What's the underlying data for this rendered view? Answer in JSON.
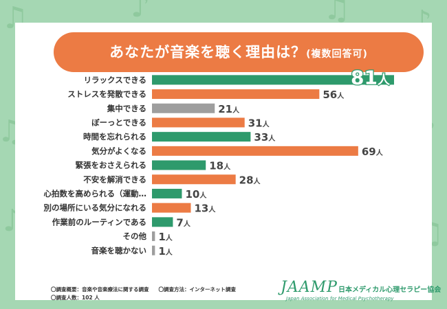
{
  "title": {
    "main": "あなたが音楽を聴く理由は？",
    "sub": "(複数回答可)"
  },
  "chart_data": {
    "type": "bar",
    "orientation": "horizontal",
    "unit": "人",
    "categories": [
      "リラックスできる",
      "ストレスを発散できる",
      "集中できる",
      "ぼーっとできる",
      "時間を忘れられる",
      "気分がよくなる",
      "緊張をおさえられる",
      "不安を解消できる",
      "心拍数を高められる（運動…",
      "別の場所にいる気分になれる",
      "作業前のルーティンである",
      "その他",
      "音楽を聴かない"
    ],
    "values": [
      81,
      56,
      21,
      31,
      33,
      69,
      18,
      28,
      10,
      13,
      7,
      1,
      1
    ],
    "colors": [
      "#2e9a6c",
      "#ec7b44",
      "#9e9e9e",
      "#ec7b44",
      "#2e9a6c",
      "#ec7b44",
      "#2e9a6c",
      "#ec7b44",
      "#2e9a6c",
      "#ec7b44",
      "#2e9a6c",
      "#9e9e9e",
      "#9e9e9e"
    ],
    "highlight_index": 0,
    "xlim": [
      0,
      81
    ]
  },
  "footer": {
    "survey_overview": "〇調査概要：音楽や音楽療法に関する調査",
    "survey_method": "〇調査方法：インターネット調査",
    "respondents": "〇調査人数：102 人"
  },
  "logo": {
    "mark": "JAAMP",
    "name_jp": "日本メディカル心理セラピー協会",
    "name_en": "Japan Association for Medical Psychotherapy"
  },
  "colors": {
    "background": "#a5d7b3",
    "title_bar": "#ec7b44",
    "green": "#2e9a6c",
    "orange": "#ec7b44",
    "gray": "#9e9e9e"
  }
}
